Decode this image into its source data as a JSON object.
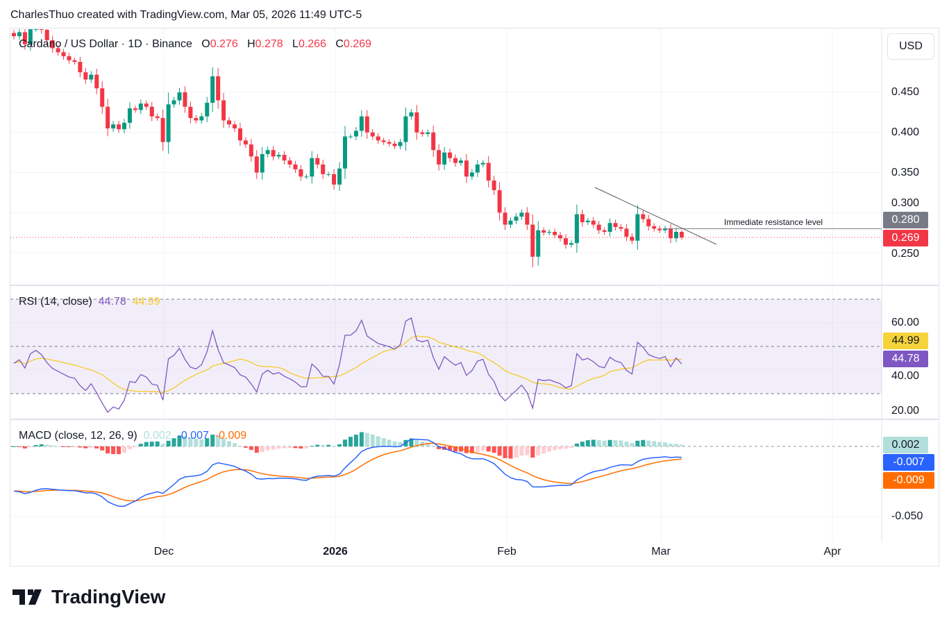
{
  "header": {
    "credit": "CharlesThuo created with TradingView.com, Mar 05, 2026 11:49 UTC-5"
  },
  "legend": {
    "symbol": "Cardano / US Dollar · 1D · Binance",
    "o_label": "O",
    "o": "0.276",
    "h_label": "H",
    "h": "0.278",
    "l_label": "L",
    "l": "0.266",
    "c_label": "C",
    "c": "0.269"
  },
  "currency_button": "USD",
  "annotation": "Immediate resistance level",
  "price_axis": {
    "ticks": [
      "0.450",
      "0.400",
      "0.350",
      "0.300",
      "0.250"
    ],
    "resistance_tag": "0.280",
    "last_tag": "0.269"
  },
  "rsi": {
    "title": "RSI (14, close)",
    "value": "44.78",
    "ma": "44.99",
    "ticks": [
      "60.00",
      "40.00",
      "20.00"
    ]
  },
  "macd": {
    "title": "MACD (close, 12, 26, 9)",
    "hist": "0.002",
    "macd": "-0.007",
    "signal": "-0.009",
    "ticks": [
      "-0.050"
    ]
  },
  "time_axis": [
    "Dec",
    "2026",
    "Feb",
    "Mar",
    "Apr"
  ],
  "colors": {
    "up": "#089981",
    "down": "#f23645",
    "rsi": "#7e57c2",
    "rsi_ma": "#f7c928",
    "macd": "#2962ff",
    "signal": "#ff6d00",
    "resistance_tag": "#787b86"
  },
  "logo": "TradingView",
  "chart_data": {
    "type": "candlestick",
    "title": "Cardano / US Dollar · 1D · Binance",
    "start_date": "2025-11-04",
    "end_date": "2026-03-05",
    "close": [
      0.52,
      0.525,
      0.51,
      0.53,
      0.535,
      0.528,
      0.515,
      0.505,
      0.5,
      0.495,
      0.49,
      0.488,
      0.475,
      0.466,
      0.472,
      0.455,
      0.432,
      0.405,
      0.41,
      0.404,
      0.412,
      0.43,
      0.428,
      0.436,
      0.432,
      0.42,
      0.418,
      0.388,
      0.435,
      0.44,
      0.45,
      0.432,
      0.418,
      0.415,
      0.42,
      0.437,
      0.47,
      0.44,
      0.415,
      0.41,
      0.405,
      0.39,
      0.385,
      0.37,
      0.35,
      0.373,
      0.378,
      0.37,
      0.372,
      0.365,
      0.36,
      0.354,
      0.345,
      0.345,
      0.368,
      0.36,
      0.348,
      0.348,
      0.335,
      0.355,
      0.395,
      0.395,
      0.402,
      0.42,
      0.4,
      0.395,
      0.39,
      0.388,
      0.386,
      0.383,
      0.388,
      0.42,
      0.425,
      0.4,
      0.398,
      0.4,
      0.378,
      0.36,
      0.375,
      0.368,
      0.362,
      0.365,
      0.345,
      0.35,
      0.36,
      0.362,
      0.34,
      0.328,
      0.3,
      0.285,
      0.29,
      0.295,
      0.3,
      0.285,
      0.245,
      0.278,
      0.275,
      0.276,
      0.272,
      0.268,
      0.26,
      0.262,
      0.298,
      0.288,
      0.29,
      0.285,
      0.278,
      0.276,
      0.287,
      0.282,
      0.28,
      0.27,
      0.265,
      0.298,
      0.292,
      0.283,
      0.28,
      0.278,
      0.28,
      0.268,
      0.276,
      0.269
    ],
    "last_ohlc": {
      "open": 0.276,
      "high": 0.278,
      "low": 0.266,
      "close": 0.269
    },
    "resistance": 0.28,
    "y_range": [
      0.22,
      0.54
    ],
    "rsi_range": [
      15,
      75
    ],
    "rsi_bands": [
      30,
      50,
      70
    ],
    "macd_range": [
      -0.065,
      0.008
    ]
  }
}
